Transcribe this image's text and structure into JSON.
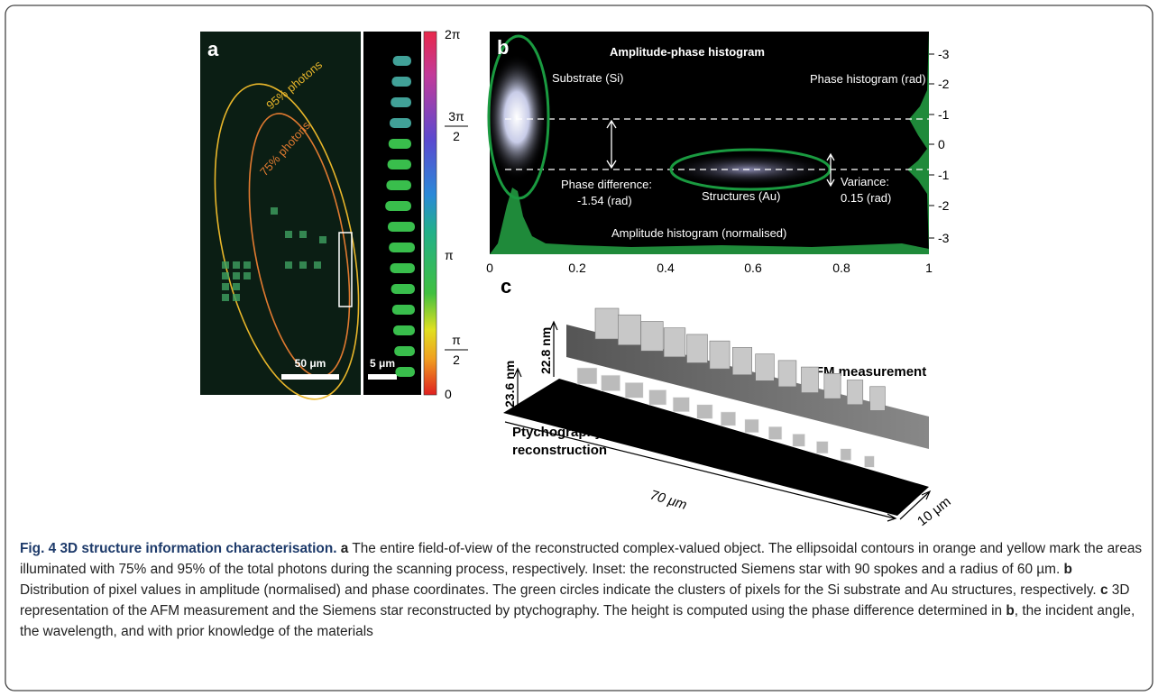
{
  "panel_a": {
    "label": "a",
    "contour_95": "95% photons",
    "contour_75": "75% photons",
    "scale_main": "50 μm",
    "scale_inset": "5 μm",
    "colorbar_ticks": [
      "2π",
      {
        "numerator": "3π",
        "denominator": "2"
      },
      "π",
      {
        "numerator": "π",
        "denominator": "2"
      },
      "0"
    ]
  },
  "panel_b": {
    "label": "b",
    "title": "Amplitude-phase histogram",
    "substrate": "Substrate (Si)",
    "phase_histogram": "Phase histogram (rad)",
    "phase_difference": [
      "Phase difference:",
      "-1.54 (rad)"
    ],
    "structures": "Structures (Au)",
    "variance": [
      "Variance:",
      "0.15 (rad)"
    ],
    "amplitude_histogram": "Amplitude histogram (normalised)",
    "x_ticks": [
      "0",
      "0.2",
      "0.4",
      "0.6",
      "0.8",
      "1"
    ],
    "y_ticks": [
      "-3",
      "-2",
      "-1",
      "0",
      "-1",
      "-2",
      "-3"
    ]
  },
  "panel_c": {
    "label": "c",
    "afm_height": "22.8 nm",
    "ptycho_height": "23.6 nm",
    "afm": "AFM measurement",
    "ptycho": [
      "Ptychography",
      "reconstruction"
    ],
    "length": "70 μm",
    "width": "10 μm"
  },
  "caption": {
    "title": "Fig. 4 3D structure information characterisation.",
    "parts": [
      {
        "label": "a",
        "text": "The entire field-of-view of the reconstructed complex-valued object. The ellipsoidal contours in orange and yellow mark the areas illuminated with 75% and 95% of the total photons during the scanning process, respectively. Inset: the reconstructed Siemens star with 90 spokes and a radius of 60 µm."
      },
      {
        "label": "b",
        "text": "Distribution of pixel values in amplitude (normalised) and phase coordinates. The green circles indicate the clusters of pixels for the Si substrate and Au structures, respectively."
      },
      {
        "label": "c",
        "text": "3D representation of the AFM measurement and the Siemens star reconstructed by ptychography. The height is computed using the phase difference determined in",
        "ref": "b",
        "text_after": ", the incident angle, the wavelength, and with prior knowledge of the materials"
      }
    ]
  }
}
